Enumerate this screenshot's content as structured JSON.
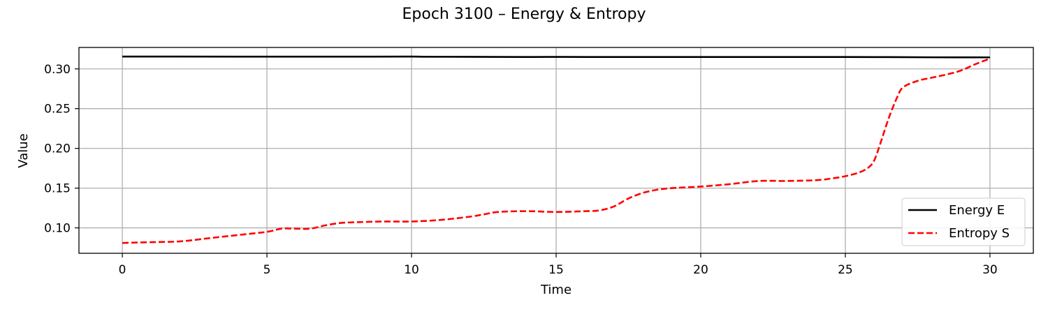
{
  "chart_data": {
    "type": "line",
    "title": "Epoch 3100 – Energy & Entropy",
    "xlabel": "Time",
    "ylabel": "Value",
    "xlim": [
      -1.5,
      31.5
    ],
    "ylim": [
      0.068,
      0.327
    ],
    "xticks": [
      0,
      5,
      10,
      15,
      20,
      25,
      30
    ],
    "xtick_labels": [
      "0",
      "5",
      "10",
      "15",
      "20",
      "25",
      "30"
    ],
    "yticks": [
      0.1,
      0.15,
      0.2,
      0.25,
      0.3
    ],
    "ytick_labels": [
      "0.10",
      "0.15",
      "0.20",
      "0.25",
      "0.30"
    ],
    "grid": true,
    "legend_position": "bottom-right",
    "series": [
      {
        "name": "Energy E",
        "color": "#000000",
        "style": "solid",
        "x": [
          0,
          2,
          4,
          6,
          8,
          10,
          10.5,
          12,
          14,
          15,
          16,
          18,
          20,
          22,
          24,
          26,
          28,
          30
        ],
        "y": [
          0.3155,
          0.3155,
          0.3154,
          0.3154,
          0.3154,
          0.3155,
          0.3153,
          0.3152,
          0.315,
          0.3151,
          0.315,
          0.315,
          0.315,
          0.315,
          0.315,
          0.3149,
          0.3146,
          0.3145
        ]
      },
      {
        "name": "Entropy S",
        "color": "#ff0000",
        "style": "dashed",
        "x": [
          0,
          1,
          2,
          3,
          4,
          5,
          5.5,
          6,
          6.5,
          7,
          7.5,
          8,
          9,
          10,
          11,
          12,
          12.5,
          13,
          14,
          15,
          16,
          16.5,
          17,
          17.5,
          18,
          18.5,
          19,
          20,
          21,
          22,
          23,
          24,
          24.5,
          25,
          25.5,
          25.8,
          26,
          26.2,
          26.5,
          26.8,
          27,
          27.5,
          28,
          28.5,
          29,
          29.5,
          30
        ],
        "y": [
          0.081,
          0.082,
          0.083,
          0.087,
          0.091,
          0.095,
          0.099,
          0.099,
          0.099,
          0.103,
          0.106,
          0.107,
          0.108,
          0.108,
          0.11,
          0.114,
          0.117,
          0.12,
          0.121,
          0.12,
          0.121,
          0.122,
          0.127,
          0.137,
          0.144,
          0.148,
          0.15,
          0.152,
          0.155,
          0.159,
          0.159,
          0.16,
          0.162,
          0.165,
          0.17,
          0.176,
          0.185,
          0.205,
          0.238,
          0.265,
          0.277,
          0.285,
          0.289,
          0.293,
          0.298,
          0.306,
          0.313
        ]
      }
    ]
  }
}
